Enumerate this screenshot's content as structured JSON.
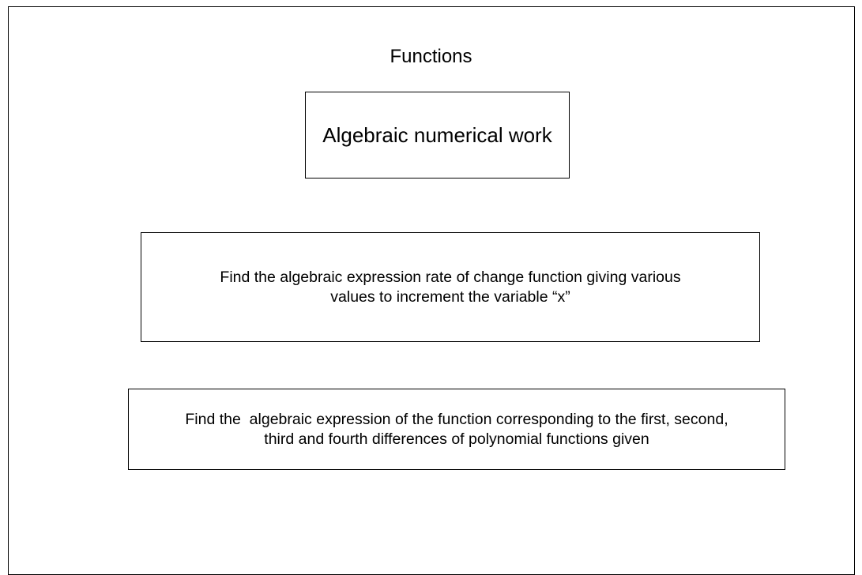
{
  "title": "Functions",
  "boxes": [
    {
      "lines": [
        "Algebraic numerical work"
      ]
    },
    {
      "lines": [
        "Find the algebraic expression rate of change function giving various",
        "values to increment the variable “x”"
      ]
    },
    {
      "lines": [
        "Find the  algebraic expression of the function corresponding to the first, second,",
        "third and fourth differences of polynomial functions given"
      ]
    }
  ]
}
